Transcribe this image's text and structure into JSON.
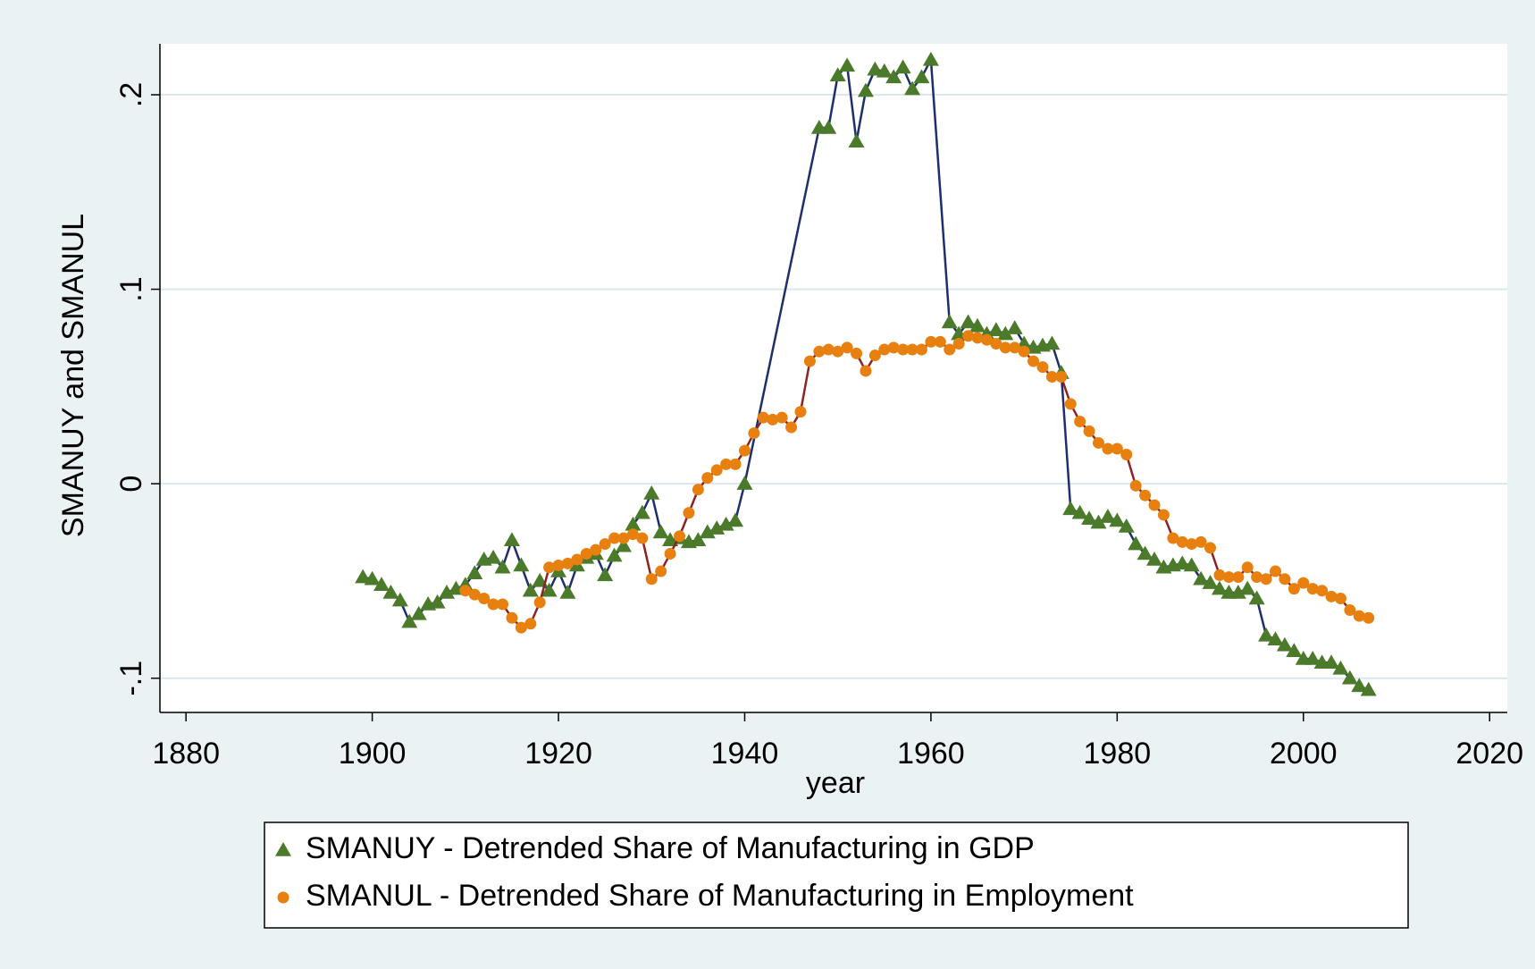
{
  "chart_data": {
    "type": "line",
    "xlabel": "year",
    "ylabel": "SMANUY and SMANUL",
    "xlim": [
      1877.2,
      2021.9
    ],
    "ylim": [
      -0.1176,
      0.2262
    ],
    "xticks": [
      1880,
      1900,
      1920,
      1940,
      1960,
      1980,
      2000,
      2020
    ],
    "yticks": [
      {
        "value": -0.1,
        "label": "-.1"
      },
      {
        "value": 0,
        "label": "0"
      },
      {
        "value": 0.1,
        "label": ".1"
      },
      {
        "value": 0.2,
        "label": ".2"
      }
    ],
    "grid": true,
    "legend": "bottom",
    "series": [
      {
        "name": "SMANUY - Detrended Share of Manufacturing in GDP",
        "color": "#4a7a2a",
        "line_color": "#1f2f6b",
        "marker": "triangle",
        "x": [
          1899,
          1900,
          1901,
          1902,
          1903,
          1904,
          1905,
          1906,
          1907,
          1908,
          1909,
          1910,
          1911,
          1912,
          1913,
          1914,
          1915,
          1916,
          1917,
          1918,
          1919,
          1920,
          1921,
          1922,
          1923,
          1924,
          1925,
          1926,
          1927,
          1928,
          1929,
          1930,
          1931,
          1932,
          1933,
          1934,
          1935,
          1936,
          1937,
          1938,
          1939,
          1940,
          1948,
          1949,
          1950,
          1951,
          1952,
          1953,
          1954,
          1955,
          1956,
          1957,
          1958,
          1959,
          1960,
          1962,
          1963,
          1964,
          1965,
          1966,
          1967,
          1968,
          1969,
          1970,
          1971,
          1972,
          1973,
          1974,
          1975,
          1976,
          1977,
          1978,
          1979,
          1980,
          1981,
          1982,
          1983,
          1984,
          1985,
          1986,
          1987,
          1988,
          1989,
          1990,
          1991,
          1992,
          1993,
          1994,
          1995,
          1996,
          1997,
          1998,
          1999,
          2000,
          2001,
          2002,
          2003,
          2004,
          2005,
          2006,
          2007
        ],
        "values": [
          -0.048,
          -0.049,
          -0.052,
          -0.056,
          -0.06,
          -0.071,
          -0.067,
          -0.062,
          -0.061,
          -0.056,
          -0.054,
          -0.052,
          -0.046,
          -0.039,
          -0.038,
          -0.043,
          -0.029,
          -0.042,
          -0.055,
          -0.05,
          -0.055,
          -0.045,
          -0.056,
          -0.042,
          -0.038,
          -0.036,
          -0.047,
          -0.037,
          -0.032,
          -0.021,
          -0.015,
          -0.005,
          -0.025,
          -0.029,
          -0.028,
          -0.03,
          -0.029,
          -0.025,
          -0.023,
          -0.021,
          -0.019,
          0,
          0.183,
          0.183,
          0.21,
          0.215,
          0.176,
          0.202,
          0.213,
          0.212,
          0.209,
          0.214,
          0.203,
          0.209,
          0.218,
          0.083,
          0.077,
          0.083,
          0.081,
          0.077,
          0.079,
          0.077,
          0.08,
          0.072,
          0.07,
          0.071,
          0.072,
          0.057,
          -0.013,
          -0.015,
          -0.018,
          -0.02,
          -0.017,
          -0.019,
          -0.022,
          -0.031,
          -0.036,
          -0.039,
          -0.043,
          -0.042,
          -0.041,
          -0.042,
          -0.049,
          -0.051,
          -0.054,
          -0.056,
          -0.056,
          -0.054,
          -0.059,
          -0.078,
          -0.08,
          -0.083,
          -0.086,
          -0.09,
          -0.09,
          -0.092,
          -0.092,
          -0.095,
          -0.1,
          -0.104,
          -0.106
        ]
      },
      {
        "name": "SMANUL - Detrended Share of Manufacturing in Employment",
        "color": "#e8800f",
        "line_color": "#8e2323",
        "marker": "circle",
        "x": [
          1910,
          1911,
          1912,
          1913,
          1914,
          1915,
          1916,
          1917,
          1918,
          1919,
          1920,
          1921,
          1922,
          1923,
          1924,
          1925,
          1926,
          1927,
          1928,
          1929,
          1930,
          1931,
          1932,
          1933,
          1934,
          1935,
          1936,
          1937,
          1938,
          1939,
          1940,
          1941,
          1942,
          1943,
          1944,
          1945,
          1946,
          1947,
          1948,
          1949,
          1950,
          1951,
          1952,
          1953,
          1954,
          1955,
          1956,
          1957,
          1958,
          1959,
          1960,
          1961,
          1962,
          1963,
          1964,
          1965,
          1966,
          1967,
          1968,
          1969,
          1970,
          1971,
          1972,
          1973,
          1974,
          1975,
          1976,
          1977,
          1978,
          1979,
          1980,
          1981,
          1982,
          1983,
          1984,
          1985,
          1986,
          1987,
          1988,
          1989,
          1990,
          1991,
          1992,
          1993,
          1994,
          1995,
          1996,
          1997,
          1998,
          1999,
          2000,
          2001,
          2002,
          2003,
          2004,
          2005,
          2006,
          2007
        ],
        "values": [
          -0.055,
          -0.057,
          -0.059,
          -0.062,
          -0.062,
          -0.069,
          -0.074,
          -0.072,
          -0.061,
          -0.043,
          -0.042,
          -0.041,
          -0.039,
          -0.036,
          -0.034,
          -0.031,
          -0.028,
          -0.028,
          -0.026,
          -0.028,
          -0.049,
          -0.045,
          -0.036,
          -0.027,
          -0.015,
          -0.003,
          0.003,
          0.007,
          0.01,
          0.01,
          0.017,
          0.026,
          0.034,
          0.033,
          0.034,
          0.029,
          0.037,
          0.063,
          0.068,
          0.069,
          0.068,
          0.07,
          0.067,
          0.058,
          0.066,
          0.069,
          0.07,
          0.069,
          0.069,
          0.069,
          0.073,
          0.073,
          0.069,
          0.072,
          0.076,
          0.075,
          0.074,
          0.072,
          0.07,
          0.07,
          0.068,
          0.063,
          0.06,
          0.055,
          0.055,
          0.041,
          0.032,
          0.027,
          0.021,
          0.018,
          0.018,
          0.015,
          -0.001,
          -0.006,
          -0.011,
          -0.016,
          -0.028,
          -0.03,
          -0.031,
          -0.03,
          -0.033,
          -0.047,
          -0.048,
          -0.048,
          -0.043,
          -0.048,
          -0.049,
          -0.045,
          -0.049,
          -0.054,
          -0.051,
          -0.054,
          -0.055,
          -0.058,
          -0.059,
          -0.065,
          -0.068,
          -0.069
        ]
      }
    ]
  }
}
